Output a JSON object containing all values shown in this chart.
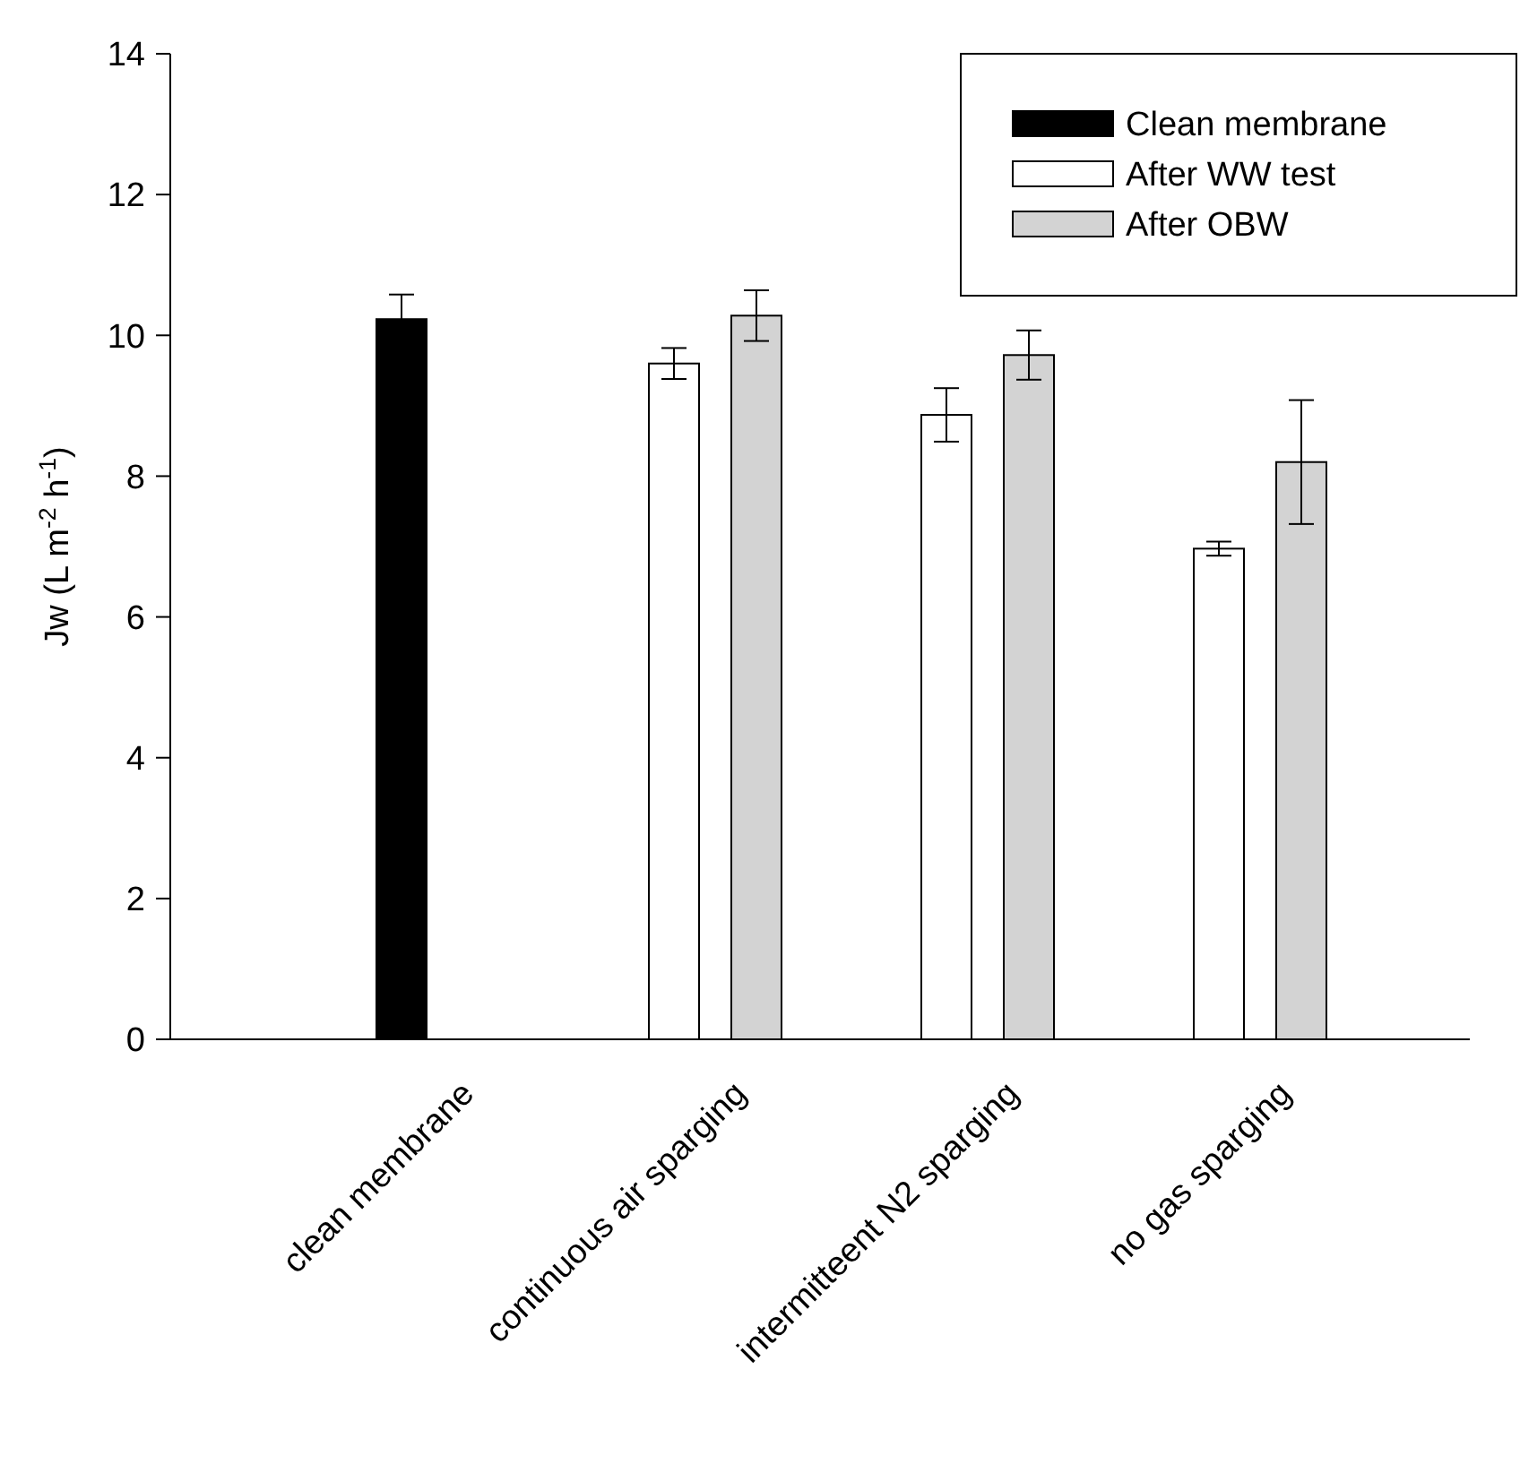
{
  "chart_data": {
    "type": "bar",
    "ylabel": "Jw (L m$^{-2}$ h$^{-1}$)",
    "categories": [
      "clean membrane",
      "continuous air sparging",
      "intermitteent N2 sparging",
      "no gas sparging"
    ],
    "series": [
      {
        "name": "Clean membrane",
        "color": "#000000",
        "values": [
          10.23,
          null,
          null,
          null
        ],
        "errors": [
          0.35,
          null,
          null,
          null
        ]
      },
      {
        "name": "After WW test",
        "color": "#ffffff",
        "values": [
          null,
          9.6,
          8.87,
          6.97
        ],
        "errors": [
          null,
          0.22,
          0.38,
          0.1
        ]
      },
      {
        "name": "After OBW",
        "color": "#d3d3d3",
        "values": [
          null,
          10.28,
          9.72,
          8.2
        ],
        "errors": [
          null,
          0.36,
          0.35,
          0.88
        ]
      }
    ],
    "ylim": [
      0,
      14
    ],
    "yticks": [
      0,
      2,
      4,
      6,
      8,
      10,
      12,
      14
    ],
    "grid": false,
    "legend": "top right"
  }
}
